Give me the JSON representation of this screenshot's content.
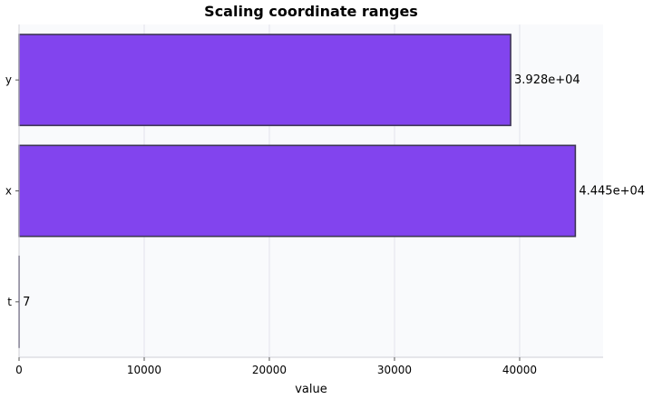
{
  "chart_data": {
    "type": "bar",
    "orientation": "horizontal",
    "title": "Scaling coordinate ranges",
    "xlabel": "value",
    "ylabel": "",
    "categories": [
      "t",
      "x",
      "y"
    ],
    "values": [
      7,
      44450,
      39280
    ],
    "value_labels": [
      "7",
      "4.445e+04",
      "3.928e+04"
    ],
    "xlim": [
      0,
      46670
    ],
    "xticks": [
      0,
      10000,
      20000,
      30000,
      40000
    ],
    "grid": true,
    "colors": {
      "bar_fill": "#8244ee",
      "bar_edge": "#3d3555",
      "plot_background": "#f9fafc",
      "grid": "#e3e3ec",
      "axis": "#cfcfd6"
    }
  }
}
